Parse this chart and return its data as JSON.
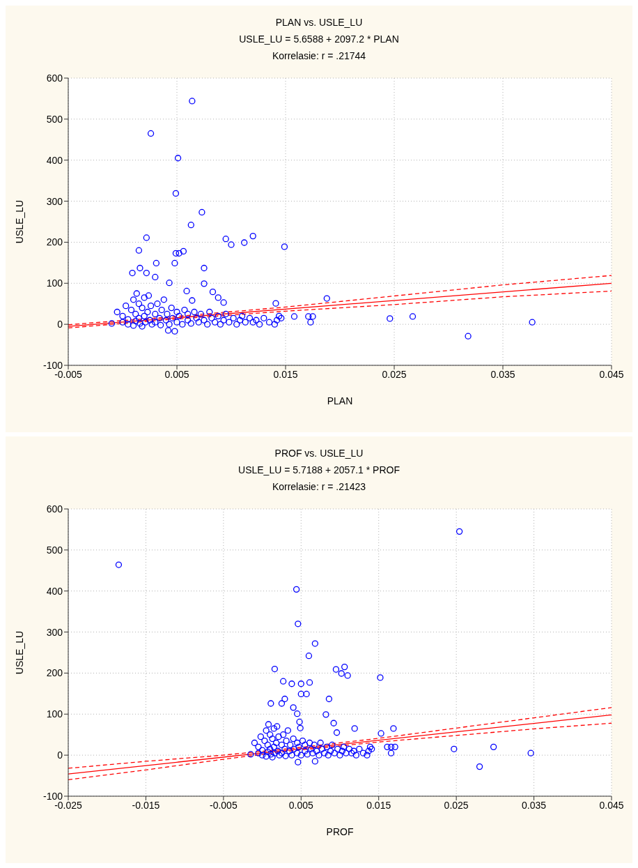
{
  "chart_data": [
    {
      "type": "scatter",
      "title": "PLAN vs. USLE_LU",
      "subtitle": "USLE_LU = 5.6588 + 2097.2 * PLAN",
      "annotations": [
        "Korrelasie: r = .21744"
      ],
      "xlabel": "PLAN",
      "ylabel": "USLE_LU",
      "xlim": [
        -0.005,
        0.045
      ],
      "xticks": [
        -0.005,
        0.005,
        0.015,
        0.025,
        0.035,
        0.045
      ],
      "ylim": [
        -100,
        600
      ],
      "yticks": [
        -100,
        0,
        100,
        200,
        300,
        400,
        500,
        600
      ],
      "grid": true,
      "series": [
        {
          "type": "scatter",
          "color": "#0000ff",
          "marker": "circle",
          "x": [
            0.0026,
            0.0064,
            0.0051,
            0.0049,
            0.0073,
            0.0063,
            0.0022,
            0.0095,
            0.01,
            0.0112,
            0.012,
            0.0149,
            0.0015,
            0.0049,
            0.0052,
            0.0056,
            0.0031,
            0.0048,
            0.0016,
            0.0075,
            0.0009,
            0.0022,
            0.003,
            0.0043,
            0.0075,
            0.0083,
            0.0088,
            0.0093,
            0.0141,
            0.0188,
            0.0059,
            0.0064,
            0.0246,
            0.0267,
            0.0318,
            0.0377,
            0.0158,
            0.0171,
            0.0175,
            0.0173,
            0.0042,
            0.0048,
            -0.001,
            -0.0005,
            0,
            0,
            0.0003,
            0.0005,
            0.0005,
            0.0008,
            0.001,
            0.001,
            0.0012,
            0.0012,
            0.0013,
            0.0015,
            0.0015,
            0.0016,
            0.0018,
            0.0018,
            0.002,
            0.002,
            0.0021,
            0.0023,
            0.0024,
            0.0025,
            0.0026,
            0.0027,
            0.003,
            0.003,
            0.0032,
            0.0034,
            0.0035,
            0.0036,
            0.0038,
            0.004,
            0.0041,
            0.0043,
            0.0045,
            0.0046,
            0.005,
            0.005,
            0.0052,
            0.0055,
            0.0057,
            0.006,
            0.006,
            0.0063,
            0.0066,
            0.0068,
            0.007,
            0.0072,
            0.0075,
            0.0078,
            0.008,
            0.0082,
            0.0085,
            0.0088,
            0.009,
            0.0093,
            0.0095,
            0.0098,
            0.0102,
            0.0105,
            0.0108,
            0.011,
            0.0113,
            0.0117,
            0.012,
            0.0123,
            0.0126,
            0.013,
            0.0135,
            0.014,
            0.0142,
            0.0144,
            0.0146
          ],
          "values": [
            465,
            544,
            405,
            319,
            273,
            242,
            211,
            208,
            194,
            199,
            215,
            189,
            180,
            173,
            173,
            178,
            149,
            149,
            137,
            137,
            125,
            125,
            115,
            101,
            99,
            79,
            65,
            53,
            51,
            63,
            81,
            58,
            14,
            19,
            -29,
            5,
            19,
            19,
            19,
            5,
            -15,
            -17,
            2,
            30,
            5,
            20,
            45,
            0,
            12,
            35,
            60,
            -3,
            8,
            25,
            75,
            50,
            15,
            2,
            40,
            -5,
            65,
            20,
            5,
            30,
            70,
            10,
            45,
            0,
            25,
            5,
            50,
            15,
            -2,
            35,
            60,
            10,
            25,
            0,
            40,
            15,
            5,
            30,
            20,
            0,
            35,
            10,
            25,
            2,
            30,
            15,
            5,
            25,
            10,
            0,
            30,
            15,
            5,
            20,
            0,
            10,
            25,
            5,
            15,
            0,
            10,
            20,
            5,
            15,
            5,
            10,
            0,
            15,
            5,
            0,
            10,
            20,
            15
          ]
        },
        {
          "type": "line",
          "color": "#ff0000",
          "line_style": "solid",
          "x": [
            -0.005,
            0.045
          ],
          "values": [
            -5,
            100
          ]
        },
        {
          "type": "line",
          "color": "#ff0000",
          "line_style": "dashed",
          "x": [
            -0.005,
            0.004,
            0.015,
            0.025,
            0.035,
            0.045
          ],
          "values": [
            -1,
            17,
            42,
            69,
            96,
            119
          ]
        },
        {
          "type": "line",
          "color": "#ff0000",
          "line_style": "dashed",
          "x": [
            -0.005,
            0.004,
            0.015,
            0.025,
            0.035,
            0.045
          ],
          "values": [
            -9,
            11,
            32,
            48,
            67,
            81
          ]
        }
      ]
    },
    {
      "type": "scatter",
      "title": "PROF vs. USLE_LU",
      "subtitle": "USLE_LU = 5.7188 + 2057.1 * PROF",
      "annotations": [
        "Korrelasie: r = .21423"
      ],
      "xlabel": "PROF",
      "ylabel": "USLE_LU",
      "xlim": [
        -0.025,
        0.045
      ],
      "xticks": [
        -0.025,
        -0.015,
        -0.005,
        0.005,
        0.015,
        0.025,
        0.035,
        0.045
      ],
      "ylim": [
        -100,
        600
      ],
      "yticks": [
        -100,
        0,
        100,
        200,
        300,
        400,
        500,
        600
      ],
      "grid": true,
      "series": [
        {
          "type": "scatter",
          "color": "#0000ff",
          "marker": "circle",
          "x": [
            -0.0185,
            0.0044,
            0.0046,
            0.0068,
            0.006,
            0.0016,
            0.0095,
            0.0106,
            0.0102,
            0.011,
            0.0152,
            0.0027,
            0.0038,
            0.005,
            0.0061,
            0.005,
            0.0057,
            0.0011,
            0.0025,
            0.0029,
            0.0086,
            0.004,
            0.0045,
            0.0082,
            0.0048,
            0.0092,
            0.0049,
            0.0096,
            0.0119,
            0.0254,
            0.0169,
            0.0153,
            0.0247,
            0.0298,
            0.028,
            0.0346,
            0.0161,
            0.0166,
            0.0171,
            0.0166,
            0.0046,
            0.0068,
            -0.0015,
            -0.001,
            -0.0005,
            -0.0005,
            -0.0002,
            0,
            0,
            0.0003,
            0.0005,
            0.0005,
            0.0007,
            0.0007,
            0.0008,
            0.001,
            0.001,
            0.0011,
            0.0013,
            0.0013,
            0.0015,
            0.0015,
            0.0016,
            0.0018,
            0.0019,
            0.002,
            0.0021,
            0.0022,
            0.0025,
            0.0025,
            0.0027,
            0.0029,
            0.003,
            0.0031,
            0.0033,
            0.0035,
            0.0036,
            0.0038,
            0.004,
            0.0041,
            0.0045,
            0.0045,
            0.0047,
            0.005,
            0.0052,
            0.0055,
            0.0055,
            0.0058,
            0.0061,
            0.0063,
            0.0065,
            0.0067,
            0.007,
            0.0073,
            0.0075,
            0.0077,
            0.008,
            0.0083,
            0.0085,
            0.0088,
            0.009,
            0.0093,
            0.0097,
            0.01,
            0.0103,
            0.0105,
            0.0108,
            0.0112,
            0.0115,
            0.0118,
            0.0121,
            0.0125,
            0.013,
            0.0135,
            0.0137,
            0.0139,
            0.0141
          ],
          "values": [
            464,
            404,
            320,
            272,
            242,
            210,
            209,
            215,
            199,
            194,
            189,
            180,
            174,
            174,
            177,
            149,
            149,
            126,
            126,
            137,
            137,
            116,
            101,
            99,
            81,
            78,
            66,
            55,
            65,
            545,
            65,
            53,
            15,
            20,
            -28,
            5,
            20,
            20,
            20,
            5,
            -17,
            -15,
            2,
            30,
            5,
            20,
            45,
            0,
            12,
            35,
            60,
            -3,
            8,
            25,
            75,
            50,
            15,
            2,
            40,
            -5,
            65,
            20,
            5,
            30,
            70,
            10,
            45,
            0,
            25,
            5,
            50,
            15,
            -2,
            35,
            60,
            10,
            25,
            0,
            40,
            15,
            5,
            30,
            20,
            0,
            35,
            10,
            25,
            2,
            30,
            15,
            5,
            25,
            10,
            0,
            30,
            15,
            5,
            20,
            0,
            10,
            25,
            5,
            15,
            0,
            10,
            20,
            5,
            15,
            5,
            10,
            0,
            15,
            5,
            0,
            10,
            20,
            15
          ]
        },
        {
          "type": "line",
          "color": "#ff0000",
          "line_style": "solid",
          "x": [
            -0.025,
            0.045
          ],
          "values": [
            -46,
            98
          ]
        },
        {
          "type": "line",
          "color": "#ff0000",
          "line_style": "dashed",
          "x": [
            -0.025,
            -0.015,
            -0.005,
            0.004,
            0.015,
            0.025,
            0.035,
            0.045
          ],
          "values": [
            -32,
            -15,
            0,
            17,
            41,
            66,
            91,
            116
          ]
        },
        {
          "type": "line",
          "color": "#ff0000",
          "line_style": "dashed",
          "x": [
            -0.025,
            -0.015,
            -0.005,
            0.004,
            0.015,
            0.025,
            0.035,
            0.045
          ],
          "values": [
            -60,
            -36,
            -10,
            11,
            32,
            48,
            64,
            78
          ]
        }
      ]
    }
  ]
}
